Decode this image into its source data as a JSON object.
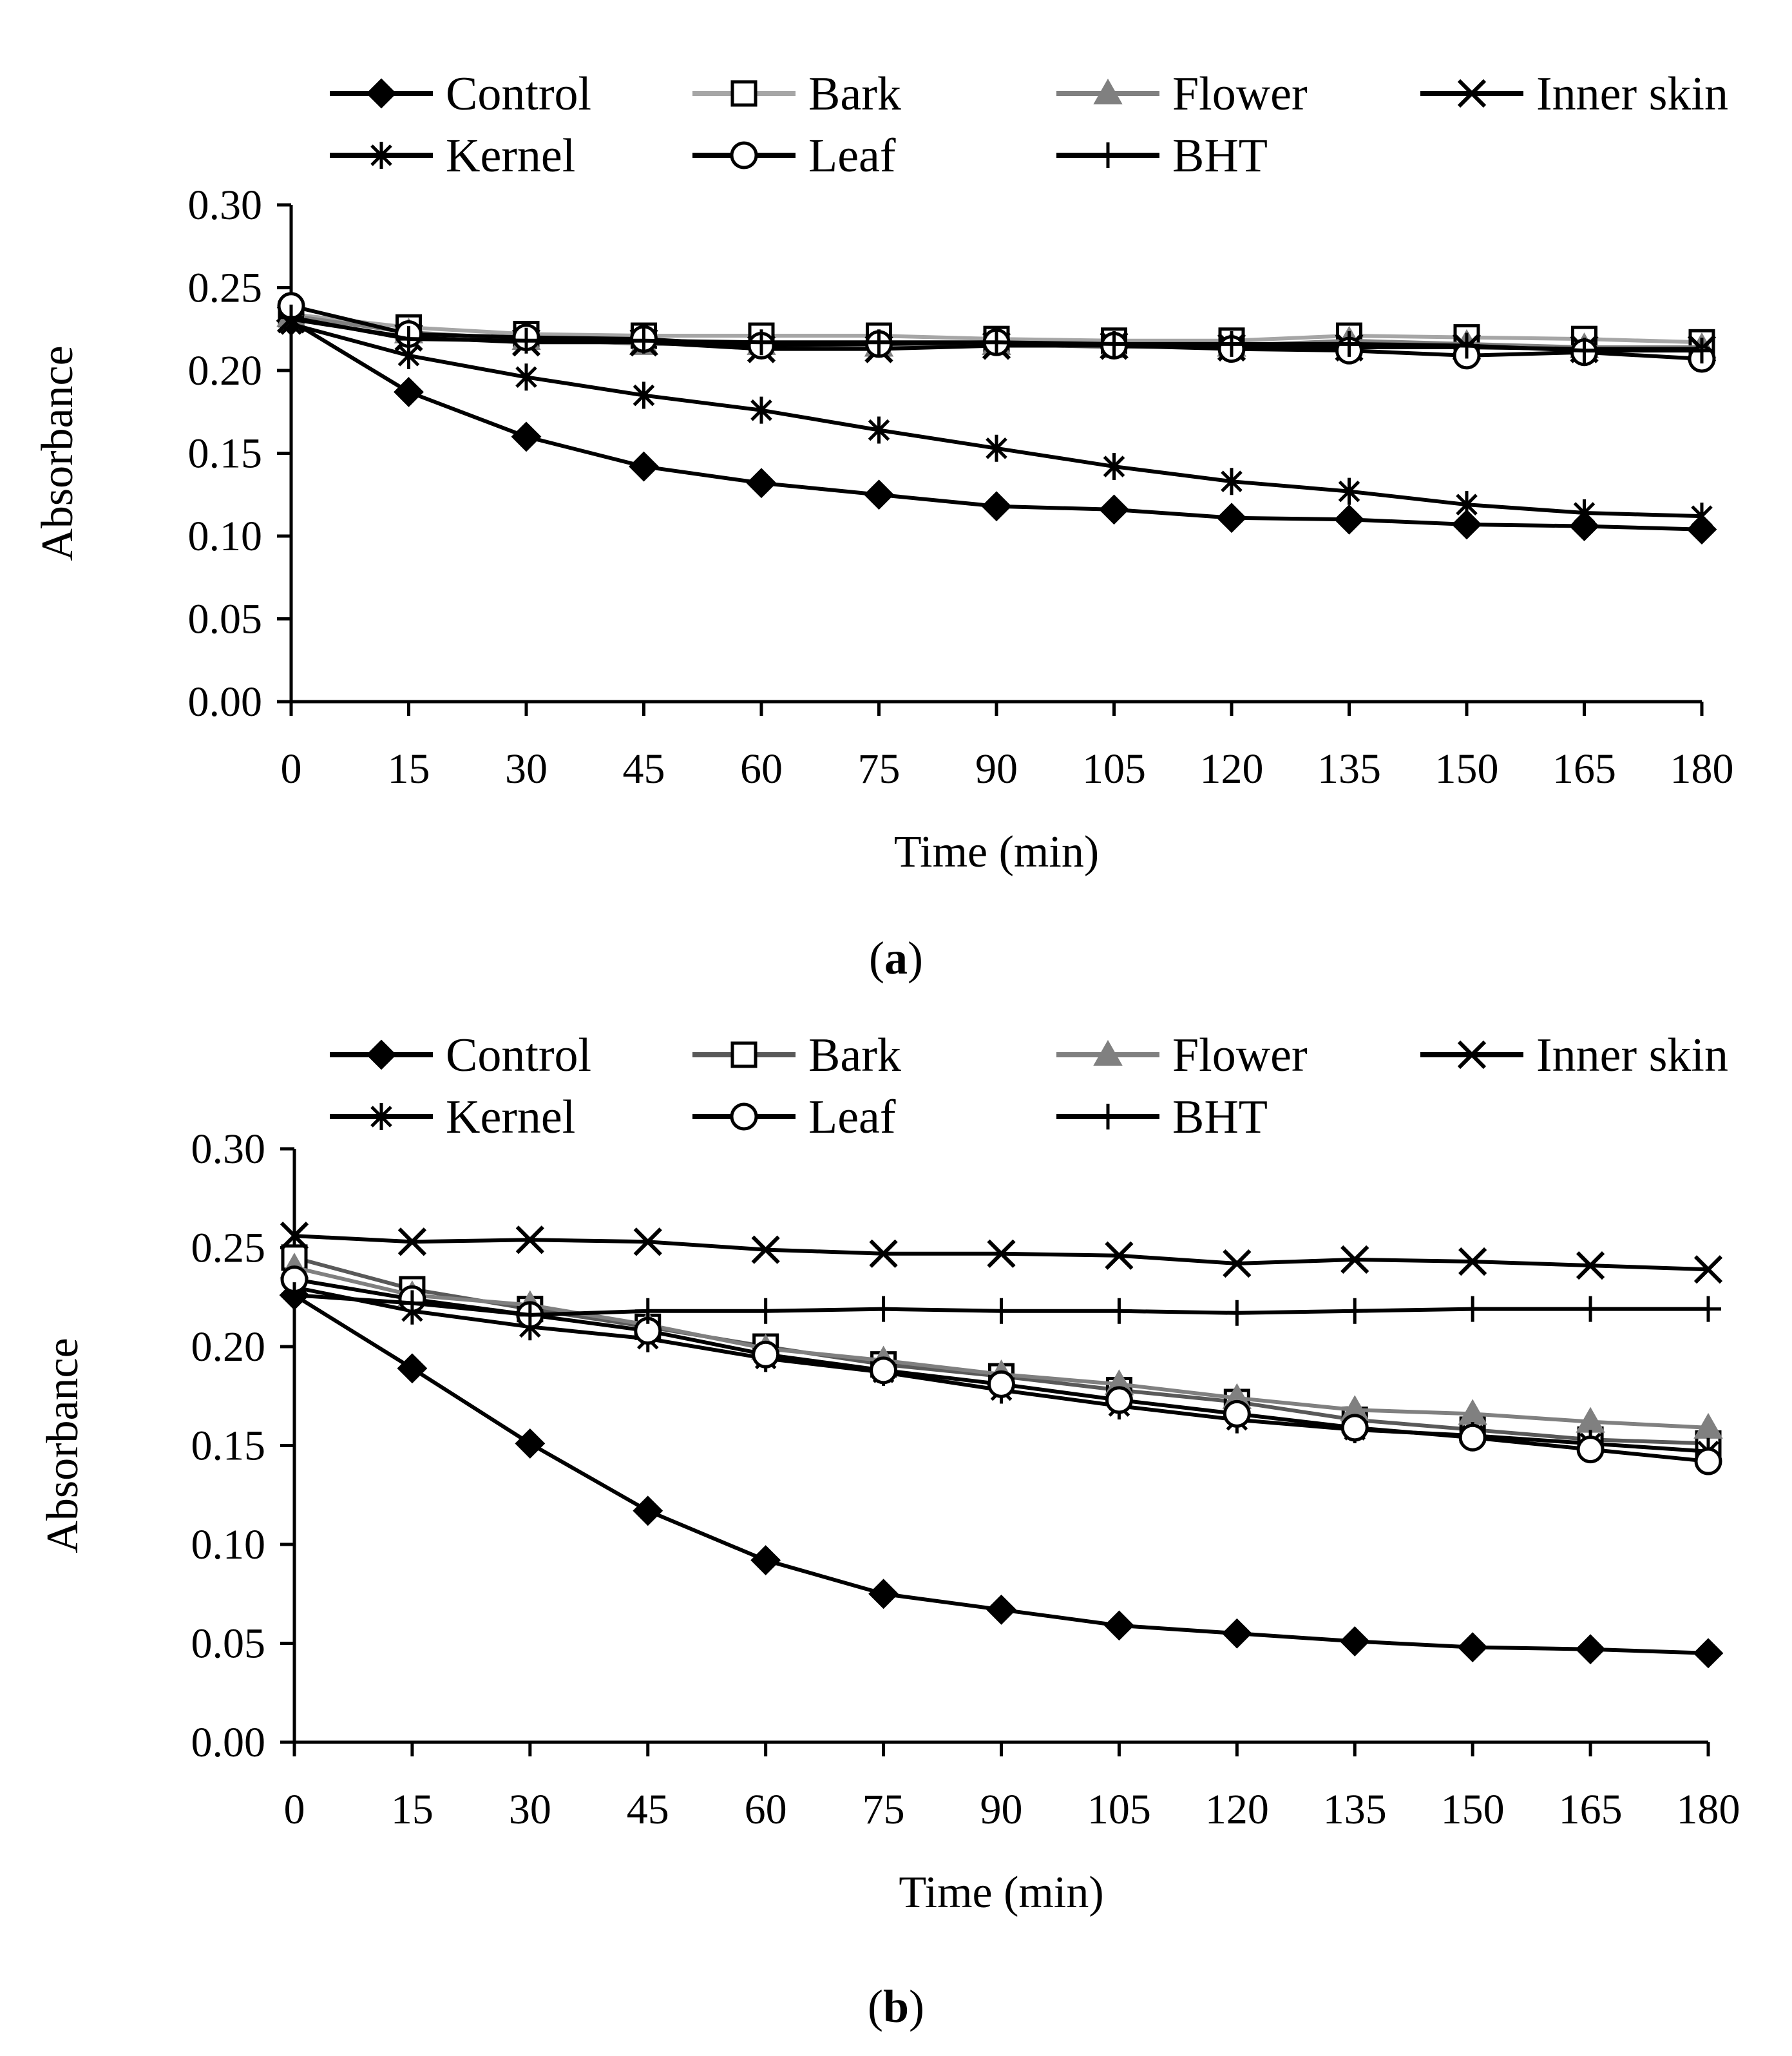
{
  "figure": {
    "panel_labels": [
      "a",
      "b"
    ]
  },
  "chart_data": [
    {
      "type": "line",
      "panel": "a",
      "xlabel": "Time (min)",
      "ylabel": "Absorbance",
      "x": [
        0,
        15,
        30,
        45,
        60,
        75,
        90,
        105,
        120,
        135,
        150,
        165,
        180
      ],
      "xticks": [
        "0",
        "15",
        "30",
        "45",
        "60",
        "75",
        "90",
        "105",
        "120",
        "135",
        "150",
        "165",
        "180"
      ],
      "ylim": [
        0,
        0.3
      ],
      "yticks": [
        "0.00",
        "0.05",
        "0.10",
        "0.15",
        "0.20",
        "0.25",
        "0.30"
      ],
      "legend_position": "top",
      "grid": false,
      "series": [
        {
          "name": "Control",
          "marker": "diamond",
          "color": "#000000",
          "values": [
            0.23,
            0.187,
            0.16,
            0.142,
            0.132,
            0.125,
            0.118,
            0.116,
            0.111,
            0.11,
            0.107,
            0.106,
            0.104
          ]
        },
        {
          "name": "Bark",
          "marker": "square",
          "color": "#a6a6a6",
          "values": [
            0.234,
            0.226,
            0.222,
            0.221,
            0.221,
            0.221,
            0.219,
            0.218,
            0.218,
            0.221,
            0.22,
            0.219,
            0.217
          ]
        },
        {
          "name": "Flower",
          "marker": "triangle",
          "color": "#808080",
          "values": [
            0.233,
            0.223,
            0.219,
            0.216,
            0.216,
            0.215,
            0.216,
            0.214,
            0.215,
            0.218,
            0.216,
            0.214,
            0.214
          ]
        },
        {
          "name": "Inner skin",
          "marker": "x",
          "color": "#000000",
          "values": [
            0.231,
            0.22,
            0.217,
            0.217,
            0.213,
            0.213,
            0.215,
            0.215,
            0.214,
            0.214,
            0.214,
            0.213,
            0.213
          ]
        },
        {
          "name": "Kernel",
          "marker": "asterisk",
          "color": "#000000",
          "values": [
            0.228,
            0.209,
            0.196,
            0.185,
            0.176,
            0.164,
            0.153,
            0.142,
            0.133,
            0.127,
            0.119,
            0.114,
            0.112
          ]
        },
        {
          "name": "Leaf",
          "marker": "circle",
          "color": "#000000",
          "values": [
            0.239,
            0.222,
            0.22,
            0.219,
            0.215,
            0.216,
            0.217,
            0.215,
            0.213,
            0.212,
            0.209,
            0.211,
            0.207
          ]
        },
        {
          "name": "BHT",
          "marker": "plus",
          "color": "#000000",
          "values": [
            0.232,
            0.219,
            0.218,
            0.218,
            0.217,
            0.217,
            0.217,
            0.216,
            0.216,
            0.216,
            0.215,
            0.212,
            0.212
          ]
        }
      ]
    },
    {
      "type": "line",
      "panel": "b",
      "xlabel": "Time (min)",
      "ylabel": "Absorbance",
      "x": [
        0,
        15,
        30,
        45,
        60,
        75,
        90,
        105,
        120,
        135,
        150,
        165,
        180
      ],
      "xticks": [
        "0",
        "15",
        "30",
        "45",
        "60",
        "75",
        "90",
        "105",
        "120",
        "135",
        "150",
        "165",
        "180"
      ],
      "ylim": [
        0,
        0.3
      ],
      "yticks": [
        "0.00",
        "0.05",
        "0.10",
        "0.15",
        "0.20",
        "0.25",
        "0.30"
      ],
      "legend_position": "top",
      "grid": false,
      "series": [
        {
          "name": "Control",
          "marker": "diamond",
          "color": "#000000",
          "values": [
            0.226,
            0.189,
            0.151,
            0.117,
            0.092,
            0.075,
            0.067,
            0.059,
            0.055,
            0.051,
            0.048,
            0.047,
            0.045
          ]
        },
        {
          "name": "Bark",
          "marker": "square",
          "color": "#595959",
          "values": [
            0.245,
            0.229,
            0.219,
            0.21,
            0.2,
            0.191,
            0.185,
            0.178,
            0.172,
            0.163,
            0.158,
            0.153,
            0.151
          ]
        },
        {
          "name": "Flower",
          "marker": "triangle",
          "color": "#808080",
          "values": [
            0.24,
            0.226,
            0.221,
            0.211,
            0.199,
            0.193,
            0.186,
            0.181,
            0.174,
            0.168,
            0.166,
            0.162,
            0.159
          ]
        },
        {
          "name": "Inner skin",
          "marker": "x",
          "color": "#000000",
          "values": [
            0.256,
            0.253,
            0.254,
            0.253,
            0.249,
            0.247,
            0.247,
            0.246,
            0.242,
            0.244,
            0.243,
            0.241,
            0.239
          ]
        },
        {
          "name": "Kernel",
          "marker": "asterisk",
          "color": "#000000",
          "values": [
            0.23,
            0.218,
            0.21,
            0.204,
            0.194,
            0.187,
            0.178,
            0.17,
            0.163,
            0.158,
            0.155,
            0.151,
            0.147
          ]
        },
        {
          "name": "Leaf",
          "marker": "circle",
          "color": "#000000",
          "values": [
            0.234,
            0.224,
            0.216,
            0.208,
            0.196,
            0.188,
            0.181,
            0.173,
            0.166,
            0.159,
            0.154,
            0.148,
            0.142
          ]
        },
        {
          "name": "BHT",
          "marker": "plus",
          "color": "#000000",
          "values": [
            0.226,
            0.222,
            0.216,
            0.218,
            0.218,
            0.219,
            0.218,
            0.218,
            0.217,
            0.218,
            0.219,
            0.219,
            0.219
          ]
        }
      ]
    }
  ]
}
